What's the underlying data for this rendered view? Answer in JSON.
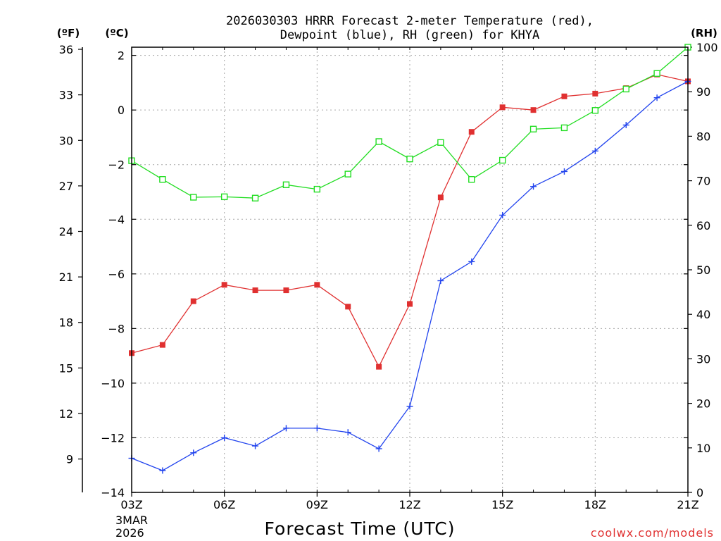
{
  "chart_data": {
    "type": "line",
    "title_line1": "2026030303 HRRR Forecast 2-meter Temperature (red),",
    "title_line2": "Dewpoint (blue), RH (green) for KHYA",
    "xlabel": "Forecast Time (UTC)",
    "unit_f": "(ºF)",
    "unit_c": "(ºC)",
    "unit_rh": "(RH)",
    "date_line1": "3MAR",
    "date_line2": "2026",
    "credit": "coolwx.com/models",
    "x_hours": [
      3,
      4,
      5,
      6,
      7,
      8,
      9,
      10,
      11,
      12,
      13,
      14,
      15,
      16,
      17,
      18,
      19,
      20,
      21
    ],
    "xlim": [
      3,
      21
    ],
    "x_ticks": [
      {
        "hour": 3,
        "label": "03Z"
      },
      {
        "hour": 6,
        "label": "06Z"
      },
      {
        "hour": 9,
        "label": "09Z"
      },
      {
        "hour": 12,
        "label": "12Z"
      },
      {
        "hour": 15,
        "label": "15Z"
      },
      {
        "hour": 18,
        "label": "18Z"
      },
      {
        "hour": 21,
        "label": "21Z"
      }
    ],
    "ylim_c": [
      -14,
      2.3
    ],
    "y_ticks_c": [
      {
        "v": 2,
        "label": "2"
      },
      {
        "v": 0,
        "label": "0"
      },
      {
        "v": -2,
        "label": "−2"
      },
      {
        "v": -4,
        "label": "−4"
      },
      {
        "v": -6,
        "label": "−6"
      },
      {
        "v": -8,
        "label": "−8"
      },
      {
        "v": -10,
        "label": "−10"
      },
      {
        "v": -12,
        "label": "−12"
      },
      {
        "v": -14,
        "label": "−14"
      }
    ],
    "y_ticks_f": [
      {
        "v": 36,
        "label": "36"
      },
      {
        "v": 33,
        "label": "33"
      },
      {
        "v": 30,
        "label": "30"
      },
      {
        "v": 27,
        "label": "27"
      },
      {
        "v": 24,
        "label": "24"
      },
      {
        "v": 21,
        "label": "21"
      },
      {
        "v": 18,
        "label": "18"
      },
      {
        "v": 15,
        "label": "15"
      },
      {
        "v": 12,
        "label": "12"
      },
      {
        "v": 9,
        "label": "9"
      }
    ],
    "ylim_rh": [
      0,
      100
    ],
    "y_ticks_rh": [
      {
        "v": 100,
        "label": "100"
      },
      {
        "v": 90,
        "label": "90"
      },
      {
        "v": 80,
        "label": "80"
      },
      {
        "v": 70,
        "label": "70"
      },
      {
        "v": 60,
        "label": "60"
      },
      {
        "v": 50,
        "label": "50"
      },
      {
        "v": 40,
        "label": "40"
      },
      {
        "v": 30,
        "label": "30"
      },
      {
        "v": 20,
        "label": "20"
      },
      {
        "v": 10,
        "label": "10"
      },
      {
        "v": 0,
        "label": "0"
      }
    ],
    "series": [
      {
        "name": "Temperature",
        "unit": "C",
        "color": "#e03030",
        "marker": "filled-square",
        "values": [
          -8.9,
          -8.6,
          -7.0,
          -6.4,
          -6.6,
          -6.6,
          -6.4,
          -7.2,
          -9.4,
          -7.1,
          -3.2,
          -0.8,
          0.1,
          0.0,
          0.5,
          0.6,
          0.8,
          1.3,
          1.05
        ]
      },
      {
        "name": "Dewpoint",
        "unit": "C",
        "color": "#2244ee",
        "marker": "plus",
        "values": [
          -12.75,
          -13.2,
          -12.55,
          -12.0,
          -12.3,
          -11.65,
          -11.65,
          -11.8,
          -12.4,
          -10.85,
          -6.25,
          -5.55,
          -3.85,
          -2.8,
          -2.25,
          -1.5,
          -0.55,
          0.45,
          1.05
        ]
      },
      {
        "name": "RH",
        "unit": "%",
        "color": "#22dd22",
        "marker": "open-square",
        "values": [
          74.5,
          70.3,
          66.3,
          66.4,
          66.1,
          69.1,
          68.1,
          71.5,
          78.8,
          74.9,
          78.6,
          70.3,
          74.6,
          81.6,
          81.9,
          85.8,
          90.6,
          94.1,
          100
        ]
      }
    ]
  }
}
